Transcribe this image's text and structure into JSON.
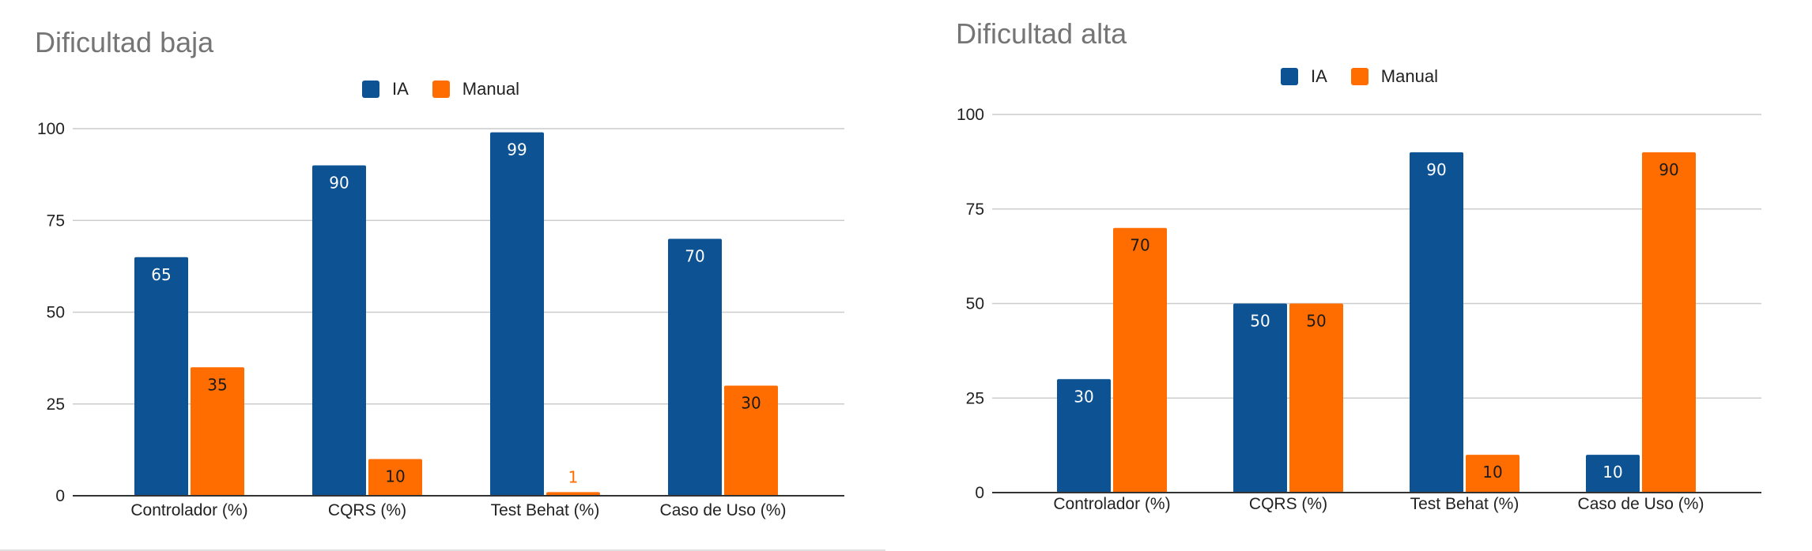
{
  "colors": {
    "ia": "#0d5394",
    "manual": "#ff6d01",
    "grid": "#cccccc",
    "axis": "#333333",
    "label_light": "#ffffff",
    "label_dark": "#1a1a1a"
  },
  "chart_data": [
    {
      "type": "bar",
      "title": "Dificultad baja",
      "categories": [
        "Controlador (%)",
        "CQRS (%)",
        "Test Behat (%)",
        "Caso de Uso (%)"
      ],
      "series": [
        {
          "name": "IA",
          "values": [
            65,
            90,
            99,
            70
          ],
          "value_labels": [
            "65",
            "90",
            "99",
            "70"
          ]
        },
        {
          "name": "Manual",
          "values": [
            35,
            10,
            1,
            30
          ],
          "value_labels": [
            "35",
            "10",
            "1",
            "30"
          ]
        }
      ],
      "y_ticks": [
        "0",
        "25",
        "50",
        "75",
        "100"
      ],
      "ylim": [
        0,
        100
      ],
      "grid": true,
      "legend_position": "top-center"
    },
    {
      "type": "bar",
      "title": "Dificultad alta",
      "categories": [
        "Controlador (%)",
        "CQRS (%)",
        "Test Behat (%)",
        "Caso de Uso (%)"
      ],
      "series": [
        {
          "name": "IA",
          "values": [
            30,
            50,
            90,
            10
          ],
          "value_labels": [
            "30",
            "50",
            "90",
            "10"
          ]
        },
        {
          "name": "Manual",
          "values": [
            70,
            50,
            10,
            90
          ],
          "value_labels": [
            "70",
            "50",
            "10",
            "90"
          ]
        }
      ],
      "y_ticks": [
        "0",
        "25",
        "50",
        "75",
        "100"
      ],
      "ylim": [
        0,
        100
      ],
      "grid": true,
      "legend_position": "top-center"
    }
  ]
}
